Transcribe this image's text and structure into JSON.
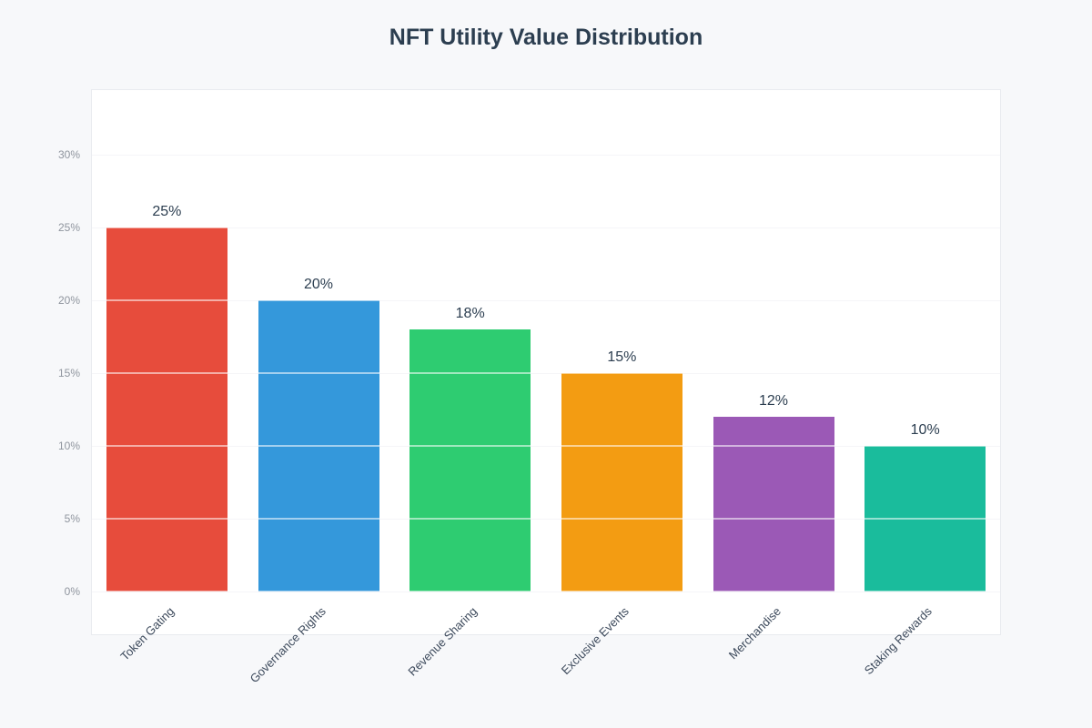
{
  "page": {
    "title": "NFT Utility Value Distribution"
  },
  "chart_data": {
    "type": "bar",
    "title": "NFT Utility Value Distribution",
    "categories": [
      "Token Gating",
      "Governance Rights",
      "Revenue Sharing",
      "Exclusive Events",
      "Merchandise",
      "Staking Rewards"
    ],
    "values": [
      25,
      20,
      18,
      15,
      12,
      10
    ],
    "value_labels": [
      "25%",
      "20%",
      "18%",
      "15%",
      "12%",
      "10%"
    ],
    "bar_colors": [
      "#e74c3c",
      "#3498db",
      "#2ecc71",
      "#f39c12",
      "#9b59b6",
      "#1abc9c"
    ],
    "xlabel": "",
    "ylabel": "",
    "ylim": [
      0,
      30
    ],
    "yticks": [
      0,
      5,
      10,
      15,
      20,
      25,
      30
    ],
    "ytick_labels": [
      "0%",
      "5%",
      "10%",
      "15%",
      "20%",
      "25%",
      "30%"
    ],
    "grid": true,
    "gridlines_over_bars": true,
    "legend": "none",
    "x_tick_rotation_deg": 45
  },
  "colors": {
    "background": "#f7f8fa",
    "plot_background": "#ffffff",
    "plot_border": "#e9ebef",
    "gridline": "#e9e9ef",
    "title_text": "#2c3e50",
    "value_label_text": "#2c3e50",
    "y_tick_text": "#8f959e",
    "x_tick_text": "#3d4a5c"
  }
}
